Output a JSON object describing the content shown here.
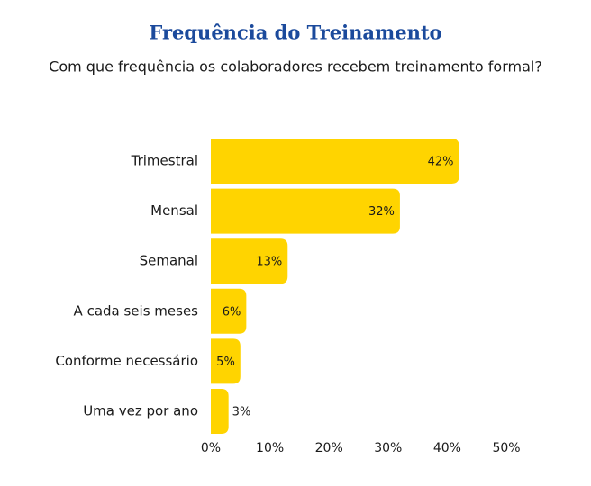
{
  "chart_data": {
    "type": "barh",
    "title": "Frequência do Treinamento",
    "subtitle": "Com que frequência os colaboradores recebem treinamento formal?",
    "categories": [
      "Trimestral",
      "Mensal",
      "Semanal",
      "A cada seis meses",
      "Conforme necessário",
      "Uma vez por ano"
    ],
    "values": [
      42,
      32,
      13,
      6,
      5,
      3
    ],
    "value_labels": [
      "42%",
      "32%",
      "13%",
      "6%",
      "5%",
      "3%"
    ],
    "color": "#ffd400",
    "xlim": [
      0,
      50
    ],
    "xticks": [
      {
        "value": 0,
        "label": "0%"
      },
      {
        "value": 10,
        "label": "10%"
      },
      {
        "value": 20,
        "label": "20%"
      },
      {
        "value": 30,
        "label": "30%"
      },
      {
        "value": 40,
        "label": "40%"
      },
      {
        "value": 50,
        "label": "50%"
      }
    ]
  }
}
